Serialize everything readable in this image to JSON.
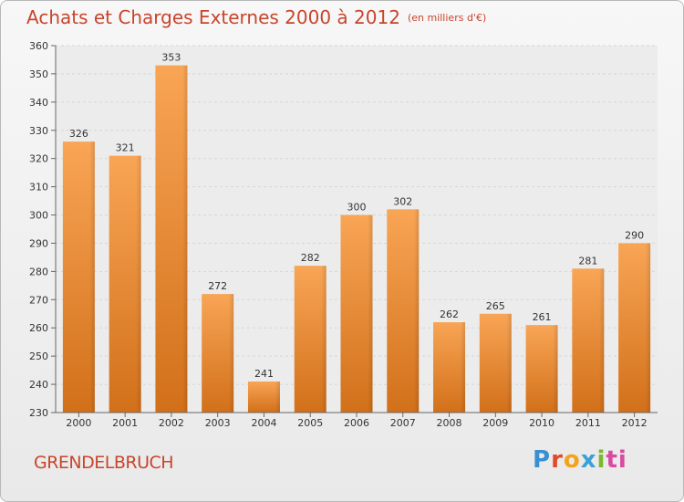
{
  "title": "Achats et Charges Externes 2000 à 2012",
  "subtitle": "(en milliers d'€)",
  "commune": "GRENDELBRUCH",
  "logo": [
    "P",
    "r",
    "o",
    "x",
    "i",
    "ti"
  ],
  "chart_data": {
    "type": "bar",
    "categories": [
      "2000",
      "2001",
      "2002",
      "2003",
      "2004",
      "2005",
      "2006",
      "2007",
      "2008",
      "2009",
      "2010",
      "2011",
      "2012"
    ],
    "values": [
      326,
      321,
      353,
      272,
      241,
      282,
      300,
      302,
      262,
      265,
      261,
      281,
      290
    ],
    "ylim": [
      230,
      360
    ],
    "yticks": [
      230,
      240,
      250,
      260,
      270,
      280,
      290,
      300,
      310,
      320,
      330,
      340,
      350,
      360
    ],
    "grid": true,
    "colors": {
      "bar_light": "#f8a555",
      "bar_dark": "#d2701a",
      "title": "#c8452c"
    }
  }
}
